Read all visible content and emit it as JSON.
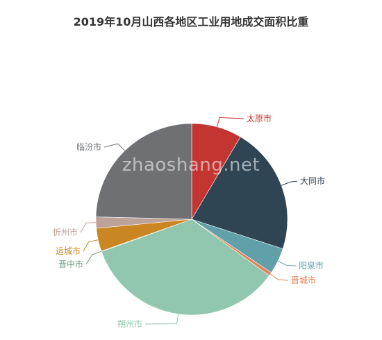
{
  "chart_data": {
    "type": "pie",
    "title": "2019年10月山西各地区工业用地成交面积比重",
    "slices": [
      {
        "name": "太原市",
        "value": 8.5,
        "color": "#c23531"
      },
      {
        "name": "大同市",
        "value": 21.5,
        "color": "#2f4554"
      },
      {
        "name": "阳泉市",
        "value": 4.4,
        "color": "#61a0a8"
      },
      {
        "name": "晋城市",
        "value": 0.6,
        "color": "#e0835a"
      },
      {
        "name": "朔州市",
        "value": 34.5,
        "color": "#91c7ae"
      },
      {
        "name": "晋中市",
        "value": 0.1,
        "color": "#749f83"
      },
      {
        "name": "运城市",
        "value": 3.9,
        "color": "#ca8622"
      },
      {
        "name": "忻州市",
        "value": 1.9,
        "color": "#bda29a"
      },
      {
        "name": "临汾市",
        "value": 24.6,
        "color": "#6e7074"
      }
    ]
  },
  "watermark": "zhaoshang.net"
}
